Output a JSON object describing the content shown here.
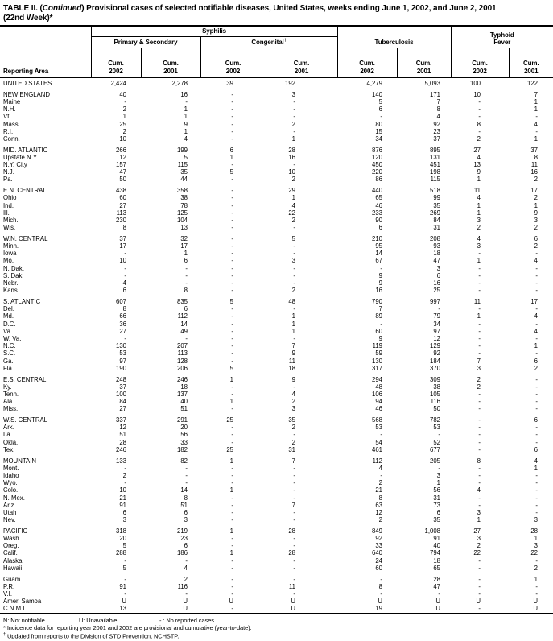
{
  "title": {
    "part1": "TABLE II. (",
    "italic": "Continued",
    "part2": ") Provisional cases of selected notifiable diseases, United States, weeks ending June 1, 2002, and June 2, 2001",
    "line2": "(22nd Week)*"
  },
  "header": {
    "reporting_area": "Reporting Area",
    "syphilis": "Syphilis",
    "primary_secondary": "Primary & Secondary",
    "congenital": "Congenital",
    "congenital_marker": "†",
    "tuberculosis": "Tuberculosis",
    "typhoid_line1": "Typhoid",
    "typhoid_line2": "Fever",
    "cum": "Cum.",
    "years": [
      "2002",
      "2001",
      "2002",
      "2001",
      "2002",
      "2001",
      "2002",
      "2001"
    ]
  },
  "rows": [
    {
      "area": "UNITED STATES",
      "values": [
        "2,424",
        "2,278",
        "39",
        "192",
        "4,279",
        "5,093",
        "100",
        "122"
      ]
    },
    {
      "area": "NEW ENGLAND",
      "gap": true,
      "values": [
        "40",
        "16",
        "-",
        "3",
        "140",
        "171",
        "10",
        "7"
      ]
    },
    {
      "area": "Maine",
      "values": [
        "-",
        "-",
        "-",
        "-",
        "5",
        "7",
        "-",
        "1"
      ]
    },
    {
      "area": "N.H.",
      "values": [
        "2",
        "1",
        "-",
        "-",
        "6",
        "8",
        "-",
        "1"
      ]
    },
    {
      "area": "Vt.",
      "values": [
        "1",
        "1",
        "-",
        "-",
        "-",
        "4",
        "-",
        "-"
      ]
    },
    {
      "area": "Mass.",
      "values": [
        "25",
        "9",
        "-",
        "2",
        "80",
        "92",
        "8",
        "4"
      ]
    },
    {
      "area": "R.I.",
      "values": [
        "2",
        "1",
        "-",
        "-",
        "15",
        "23",
        "-",
        "-"
      ]
    },
    {
      "area": "Conn.",
      "values": [
        "10",
        "4",
        "-",
        "1",
        "34",
        "37",
        "2",
        "1"
      ]
    },
    {
      "area": "MID. ATLANTIC",
      "gap": true,
      "values": [
        "266",
        "199",
        "6",
        "28",
        "876",
        "895",
        "27",
        "37"
      ]
    },
    {
      "area": "Upstate N.Y.",
      "values": [
        "12",
        "5",
        "1",
        "16",
        "120",
        "131",
        "4",
        "8"
      ]
    },
    {
      "area": "N.Y. City",
      "values": [
        "157",
        "115",
        "-",
        "-",
        "450",
        "451",
        "13",
        "11"
      ]
    },
    {
      "area": "N.J.",
      "values": [
        "47",
        "35",
        "5",
        "10",
        "220",
        "198",
        "9",
        "16"
      ]
    },
    {
      "area": "Pa.",
      "values": [
        "50",
        "44",
        "-",
        "2",
        "86",
        "115",
        "1",
        "2"
      ]
    },
    {
      "area": "E.N. CENTRAL",
      "gap": true,
      "values": [
        "438",
        "358",
        "-",
        "29",
        "440",
        "518",
        "11",
        "17"
      ]
    },
    {
      "area": "Ohio",
      "values": [
        "60",
        "38",
        "-",
        "1",
        "65",
        "99",
        "4",
        "2"
      ]
    },
    {
      "area": "Ind.",
      "values": [
        "27",
        "78",
        "-",
        "4",
        "46",
        "35",
        "1",
        "1"
      ]
    },
    {
      "area": "Ill.",
      "values": [
        "113",
        "125",
        "-",
        "22",
        "233",
        "269",
        "1",
        "9"
      ]
    },
    {
      "area": "Mich.",
      "values": [
        "230",
        "104",
        "-",
        "2",
        "90",
        "84",
        "3",
        "3"
      ]
    },
    {
      "area": "Wis.",
      "values": [
        "8",
        "13",
        "-",
        "-",
        "6",
        "31",
        "2",
        "2"
      ]
    },
    {
      "area": "W.N. CENTRAL",
      "gap": true,
      "values": [
        "37",
        "32",
        "-",
        "5",
        "210",
        "208",
        "4",
        "6"
      ]
    },
    {
      "area": "Minn.",
      "values": [
        "17",
        "17",
        "-",
        "-",
        "95",
        "93",
        "3",
        "2"
      ]
    },
    {
      "area": "Iowa",
      "values": [
        "-",
        "1",
        "-",
        "-",
        "14",
        "18",
        "-",
        "-"
      ]
    },
    {
      "area": "Mo.",
      "values": [
        "10",
        "6",
        "-",
        "3",
        "67",
        "47",
        "1",
        "4"
      ]
    },
    {
      "area": "N. Dak.",
      "values": [
        "-",
        "-",
        "-",
        "-",
        "-",
        "3",
        "-",
        "-"
      ]
    },
    {
      "area": "S. Dak.",
      "values": [
        "-",
        "-",
        "-",
        "-",
        "9",
        "6",
        "-",
        "-"
      ]
    },
    {
      "area": "Nebr.",
      "values": [
        "4",
        "-",
        "-",
        "-",
        "9",
        "16",
        "-",
        "-"
      ]
    },
    {
      "area": "Kans.",
      "values": [
        "6",
        "8",
        "-",
        "2",
        "16",
        "25",
        "-",
        "-"
      ]
    },
    {
      "area": "S. ATLANTIC",
      "gap": true,
      "values": [
        "607",
        "835",
        "5",
        "48",
        "790",
        "997",
        "11",
        "17"
      ]
    },
    {
      "area": "Del.",
      "values": [
        "8",
        "6",
        "-",
        "-",
        "7",
        "-",
        "-",
        "-"
      ]
    },
    {
      "area": "Md.",
      "values": [
        "66",
        "112",
        "-",
        "1",
        "89",
        "79",
        "1",
        "4"
      ]
    },
    {
      "area": "D.C.",
      "values": [
        "36",
        "14",
        "-",
        "1",
        "-",
        "34",
        "-",
        "-"
      ]
    },
    {
      "area": "Va.",
      "values": [
        "27",
        "49",
        "-",
        "1",
        "60",
        "97",
        "-",
        "4"
      ]
    },
    {
      "area": "W. Va.",
      "values": [
        "-",
        "-",
        "-",
        "-",
        "9",
        "12",
        "-",
        "-"
      ]
    },
    {
      "area": "N.C.",
      "values": [
        "130",
        "207",
        "-",
        "7",
        "119",
        "129",
        "-",
        "1"
      ]
    },
    {
      "area": "S.C.",
      "values": [
        "53",
        "113",
        "-",
        "9",
        "59",
        "92",
        "-",
        "-"
      ]
    },
    {
      "area": "Ga.",
      "values": [
        "97",
        "128",
        "-",
        "11",
        "130",
        "184",
        "7",
        "6"
      ]
    },
    {
      "area": "Fla.",
      "values": [
        "190",
        "206",
        "5",
        "18",
        "317",
        "370",
        "3",
        "2"
      ]
    },
    {
      "area": "E.S. CENTRAL",
      "gap": true,
      "values": [
        "248",
        "246",
        "1",
        "9",
        "294",
        "309",
        "2",
        "-"
      ]
    },
    {
      "area": "Ky.",
      "values": [
        "37",
        "18",
        "-",
        "-",
        "48",
        "38",
        "2",
        "-"
      ]
    },
    {
      "area": "Tenn.",
      "values": [
        "100",
        "137",
        "-",
        "4",
        "106",
        "105",
        "-",
        "-"
      ]
    },
    {
      "area": "Ala.",
      "values": [
        "84",
        "40",
        "1",
        "2",
        "94",
        "116",
        "-",
        "-"
      ]
    },
    {
      "area": "Miss.",
      "values": [
        "27",
        "51",
        "-",
        "3",
        "46",
        "50",
        "-",
        "-"
      ]
    },
    {
      "area": "W.S. CENTRAL",
      "gap": true,
      "values": [
        "337",
        "291",
        "25",
        "35",
        "568",
        "782",
        "-",
        "6"
      ]
    },
    {
      "area": "Ark.",
      "values": [
        "12",
        "20",
        "-",
        "2",
        "53",
        "53",
        "-",
        "-"
      ]
    },
    {
      "area": "La.",
      "values": [
        "51",
        "56",
        "-",
        "-",
        "-",
        "-",
        "-",
        "-"
      ]
    },
    {
      "area": "Okla.",
      "values": [
        "28",
        "33",
        "-",
        "2",
        "54",
        "52",
        "-",
        "-"
      ]
    },
    {
      "area": "Tex.",
      "values": [
        "246",
        "182",
        "25",
        "31",
        "461",
        "677",
        "-",
        "6"
      ]
    },
    {
      "area": "MOUNTAIN",
      "gap": true,
      "values": [
        "133",
        "82",
        "1",
        "7",
        "112",
        "205",
        "8",
        "4"
      ]
    },
    {
      "area": "Mont.",
      "values": [
        "-",
        "-",
        "-",
        "-",
        "4",
        "-",
        "-",
        "1"
      ]
    },
    {
      "area": "Idaho",
      "values": [
        "2",
        "-",
        "-",
        "-",
        "-",
        "3",
        "-",
        "-"
      ]
    },
    {
      "area": "Wyo.",
      "values": [
        "-",
        "-",
        "-",
        "-",
        "2",
        "1",
        "-",
        "-"
      ]
    },
    {
      "area": "Colo.",
      "values": [
        "10",
        "14",
        "1",
        "-",
        "21",
        "56",
        "4",
        "-"
      ]
    },
    {
      "area": "N. Mex.",
      "values": [
        "21",
        "8",
        "-",
        "-",
        "8",
        "31",
        "-",
        "-"
      ]
    },
    {
      "area": "Ariz.",
      "values": [
        "91",
        "51",
        "-",
        "7",
        "63",
        "73",
        "-",
        "-"
      ]
    },
    {
      "area": "Utah",
      "values": [
        "6",
        "6",
        "-",
        "-",
        "12",
        "6",
        "3",
        "-"
      ]
    },
    {
      "area": "Nev.",
      "values": [
        "3",
        "3",
        "-",
        "-",
        "2",
        "35",
        "1",
        "3"
      ]
    },
    {
      "area": "PACIFIC",
      "gap": true,
      "values": [
        "318",
        "219",
        "1",
        "28",
        "849",
        "1,008",
        "27",
        "28"
      ]
    },
    {
      "area": "Wash.",
      "values": [
        "20",
        "23",
        "-",
        "-",
        "92",
        "91",
        "3",
        "1"
      ]
    },
    {
      "area": "Oreg.",
      "values": [
        "5",
        "6",
        "-",
        "-",
        "33",
        "40",
        "2",
        "3"
      ]
    },
    {
      "area": "Calif.",
      "values": [
        "288",
        "186",
        "1",
        "28",
        "640",
        "794",
        "22",
        "22"
      ]
    },
    {
      "area": "Alaska",
      "values": [
        "-",
        "-",
        "-",
        "-",
        "24",
        "18",
        "-",
        "-"
      ]
    },
    {
      "area": "Hawaii",
      "values": [
        "5",
        "4",
        "-",
        "-",
        "60",
        "65",
        "-",
        "2"
      ]
    },
    {
      "area": "Guam",
      "gap": true,
      "values": [
        "-",
        "2",
        "-",
        "-",
        "-",
        "28",
        "-",
        "1"
      ]
    },
    {
      "area": "P.R.",
      "values": [
        "91",
        "116",
        "-",
        "11",
        "8",
        "47",
        "-",
        "-"
      ]
    },
    {
      "area": "V.I.",
      "values": [
        "-",
        "-",
        "-",
        "-",
        "-",
        "-",
        "-",
        "-"
      ]
    },
    {
      "area": "Amer. Samoa",
      "values": [
        "U",
        "U",
        "U",
        "U",
        "U",
        "U",
        "U",
        "U"
      ]
    },
    {
      "area": "C.N.M.I.",
      "values": [
        "13",
        "U",
        "-",
        "U",
        "19",
        "U",
        "-",
        "U"
      ]
    }
  ],
  "footnotes": {
    "legend_n": "N: Not notifiable.",
    "legend_u": "U: Unavailable.",
    "legend_dash": "- : No reported cases.",
    "note1_marker": "*",
    "note1_text": "Incidence data for reporting year 2001 and 2002 are provisional and cumulative (year-to-date).",
    "note2_marker": "†",
    "note2_text": "Updated from reports to the Division of STD Prevention, NCHSTP."
  }
}
